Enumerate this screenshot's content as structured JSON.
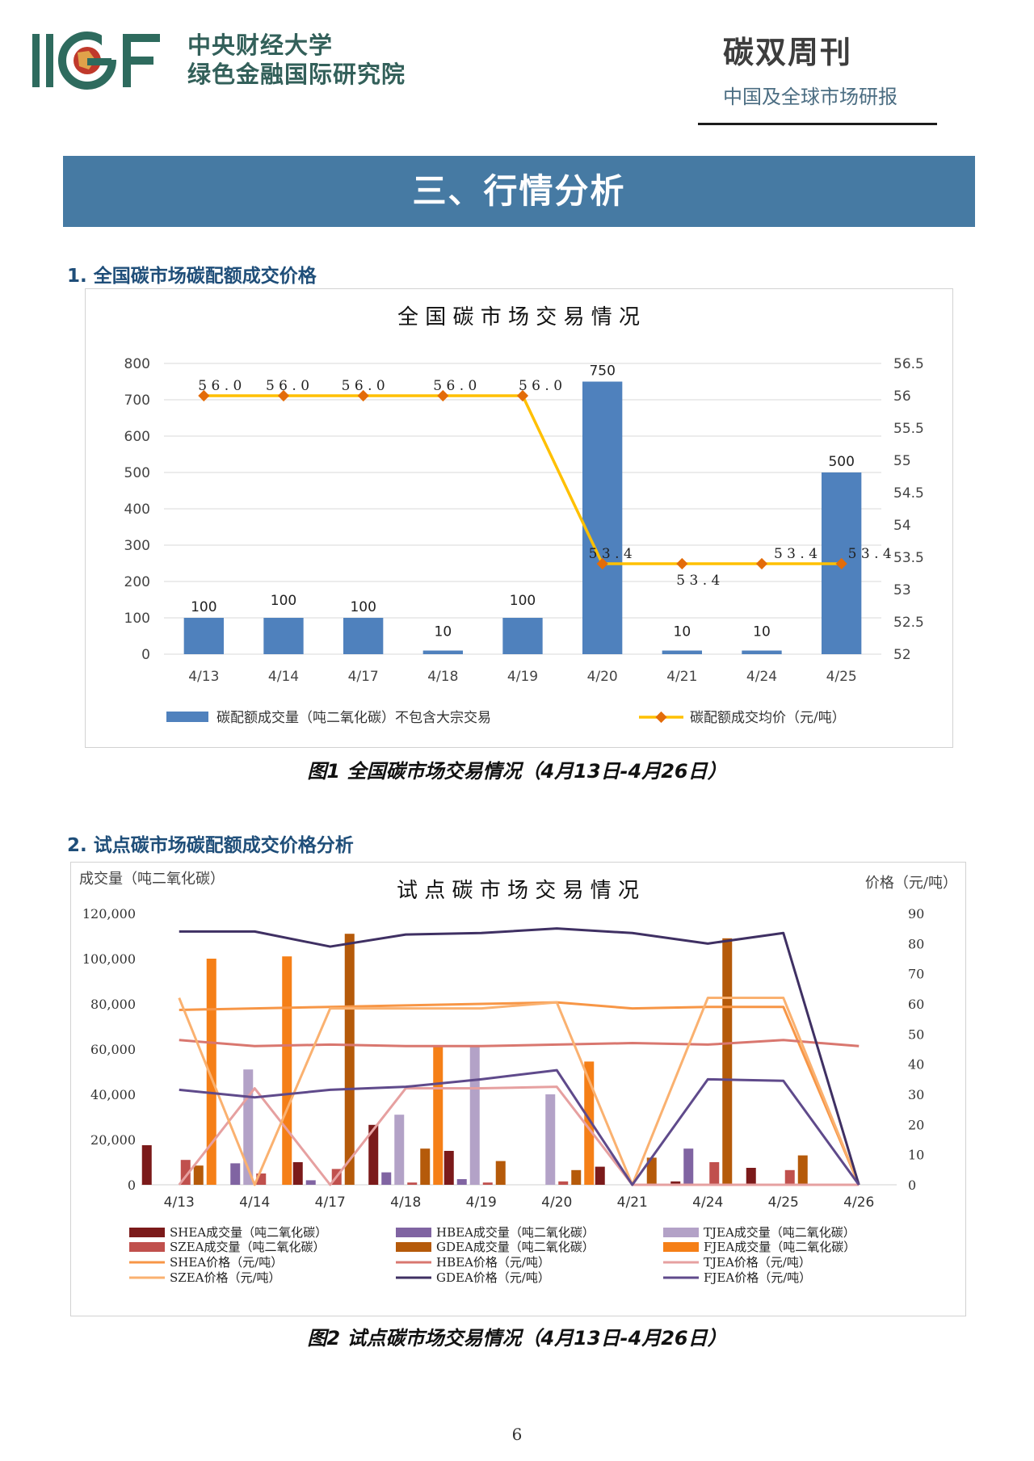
{
  "header": {
    "logo_text": "IIGF",
    "org_line1": "中央财经大学",
    "org_line2": "绿色金融国际研究院",
    "publication_title": "碳双周刊",
    "publication_subtitle": "中国及全球市场研报"
  },
  "banner_title": "三、行情分析",
  "section1": {
    "heading": "1. 全国碳市场碳配额成交价格",
    "caption": "图1 全国碳市场交易情况（4月13日-4月26日）"
  },
  "section2": {
    "heading": "2. 试点碳市场碳配额成交价格分析",
    "caption": "图2 试点碳市场交易情况（4月13日-4月26日）"
  },
  "page_number": "6",
  "chart_data": [
    {
      "type": "bar",
      "title": "全国碳市场交易情况",
      "categories": [
        "4/13",
        "4/14",
        "4/17",
        "4/18",
        "4/19",
        "4/20",
        "4/21",
        "4/24",
        "4/25"
      ],
      "y_left": {
        "min": 0,
        "max": 800,
        "ticks": [
          "0",
          "100",
          "200",
          "300",
          "400",
          "500",
          "600",
          "700",
          "800"
        ]
      },
      "y_right": {
        "min": 52,
        "max": 56.5,
        "ticks": [
          "52",
          "52.5",
          "53",
          "53.5",
          "54",
          "54.5",
          "55",
          "55.5",
          "56",
          "56.5"
        ]
      },
      "bar_color": "#4f81bd",
      "line_color": "#ffc000",
      "marker_color": "#e36c09",
      "series": [
        {
          "name": "碳配额成交量（吨二氧化碳）不包含大宗交易",
          "kind": "bar",
          "axis": "left",
          "values": [
            100,
            100,
            100,
            10,
            100,
            750,
            10,
            10,
            500
          ],
          "labels": [
            "100",
            "100",
            "100",
            "10",
            "100",
            "750",
            "10",
            "10",
            "500"
          ]
        },
        {
          "name": "碳配额成交均价（元/吨）",
          "kind": "line",
          "axis": "right",
          "values": [
            56.0,
            56.0,
            56.0,
            56.0,
            56.0,
            53.4,
            53.4,
            53.4,
            53.4
          ],
          "labels": [
            "56.0",
            "56.0",
            "56.0",
            "56.0",
            "56.0",
            "53.4",
            "53.4",
            "53.4",
            "53.4"
          ]
        }
      ]
    },
    {
      "type": "bar",
      "title": "试点碳市场交易情况",
      "left_axis_title": "成交量（吨二氧化碳）",
      "right_axis_title": "价格（元/吨）",
      "categories": [
        "4/13",
        "4/14",
        "4/17",
        "4/18",
        "4/19",
        "4/20",
        "4/21",
        "4/24",
        "4/25",
        "4/26"
      ],
      "y_left": {
        "min": 0,
        "max": 120000,
        "ticks": [
          "0",
          "20,000",
          "40,000",
          "60,000",
          "80,000",
          "100,000",
          "120,000"
        ]
      },
      "y_right": {
        "min": 0,
        "max": 90,
        "ticks": [
          "0",
          "10",
          "20",
          "30",
          "40",
          "50",
          "60",
          "70",
          "80",
          "90"
        ]
      },
      "bar_series": [
        {
          "name": "SHEA成交量（吨二氧化碳）",
          "color": "#7b1a1a",
          "values": [
            17500,
            0,
            10000,
            26500,
            15000,
            0,
            8000,
            1500,
            7500,
            0
          ]
        },
        {
          "name": "HBEA成交量（吨二氧化碳）",
          "color": "#8064a2",
          "values": [
            0,
            9500,
            2000,
            5500,
            2500,
            0,
            0,
            16000,
            0,
            0
          ]
        },
        {
          "name": "TJEA成交量（吨二氧化碳）",
          "color": "#b3a2c7",
          "values": [
            0,
            51000,
            0,
            31000,
            61000,
            40000,
            0,
            0,
            0,
            0
          ]
        },
        {
          "name": "SZEA成交量（吨二氧化碳）",
          "color": "#c0504d",
          "values": [
            11000,
            5000,
            7000,
            1000,
            1000,
            1500,
            0,
            10000,
            6500,
            0
          ]
        },
        {
          "name": "GDEA成交量（吨二氧化碳）",
          "color": "#b55a0a",
          "values": [
            8500,
            0,
            111000,
            16000,
            10500,
            6500,
            12000,
            109000,
            13000,
            0
          ]
        },
        {
          "name": "FJEA成交量（吨二氧化碳）",
          "color": "#f57f17",
          "values": [
            100000,
            101000,
            0,
            61000,
            0,
            54500,
            0,
            0,
            0,
            0
          ]
        }
      ],
      "line_series": [
        {
          "name": "SHEA价格（元/吨）",
          "color": "#f79646",
          "values": [
            58,
            58.5,
            59,
            59.5,
            60,
            60.5,
            58.5,
            59,
            59,
            0
          ]
        },
        {
          "name": "HBEA价格（元/吨）",
          "color": "#d9776f",
          "values": [
            48,
            46,
            46.5,
            46,
            46,
            46.5,
            47,
            46.5,
            48,
            46
          ]
        },
        {
          "name": "TJEA价格（元/吨）",
          "color": "#e6a0a0",
          "values": [
            0,
            32,
            0,
            32,
            32,
            32.5,
            0,
            0,
            0,
            0
          ]
        },
        {
          "name": "SZEA价格（元/吨）",
          "color": "#fab170",
          "values": [
            62,
            0,
            58.5,
            58.5,
            58.5,
            60.5,
            0,
            62,
            62,
            0
          ]
        },
        {
          "name": "GDEA价格（元/吨）",
          "color": "#3f3063",
          "values": [
            84,
            84,
            79,
            83,
            83.5,
            85,
            83.5,
            80,
            83.5,
            0
          ]
        },
        {
          "name": "FJEA价格（元/吨）",
          "color": "#5f4a8b",
          "values": [
            31.5,
            29,
            31.5,
            32.5,
            35,
            38,
            0,
            35,
            34.5,
            0
          ]
        }
      ]
    }
  ]
}
